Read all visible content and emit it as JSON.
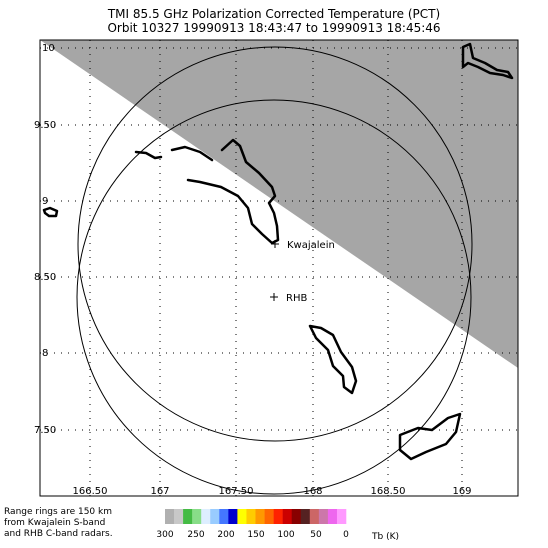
{
  "header": {
    "title_line1": "TMI 85.5 GHz Polarization Corrected Temperature (PCT)",
    "title_line2": "Orbit 10327 19990913 18:43:47 to 19990913 18:45:46"
  },
  "map": {
    "lon_ticks": [
      "166.50",
      "167",
      "167.50",
      "168",
      "168.50",
      "169"
    ],
    "lat_ticks": [
      "10",
      "9.50",
      "9",
      "8.50",
      "8",
      "7.50"
    ],
    "sites": [
      {
        "name": "Kwajalein"
      },
      {
        "name": "RHB"
      }
    ],
    "swath_color": "#a6a6a6",
    "coast_color": "#000000"
  },
  "footer": {
    "note_lines": [
      "Range rings are 150 km",
      "from Kwajalein S-band",
      "and RHB C-band radars."
    ],
    "colorbar": {
      "colors": [
        "#b0b0b0",
        "#c8c8c8",
        "#44bb44",
        "#88dd88",
        "#ddeeff",
        "#99ccff",
        "#4477ff",
        "#0000cc",
        "#ffff00",
        "#ffcc00",
        "#ff9900",
        "#ff6600",
        "#ff2200",
        "#cc0000",
        "#880000",
        "#552222",
        "#cc6666",
        "#cc77aa",
        "#ee66ee",
        "#ff99ff"
      ],
      "labels": [
        "300",
        "250",
        "200",
        "150",
        "100",
        "50",
        "0"
      ],
      "unit": "Tb (K)"
    }
  }
}
